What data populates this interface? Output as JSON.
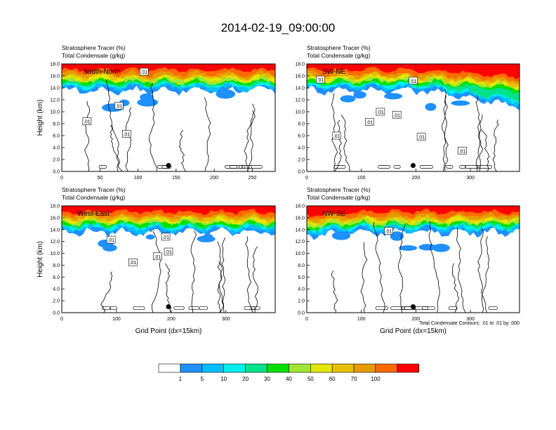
{
  "figure": {
    "title": "2014-02-19_09:00:00",
    "contour_note": "Total Condensate Contours: .01 to .01 by .000"
  },
  "colors": {
    "colorbar": [
      "#ffffff",
      "#1e90ff",
      "#00bfff",
      "#00eeee",
      "#00e38b",
      "#00e000",
      "#a0e632",
      "#e6e600",
      "#e6c000",
      "#e69b00",
      "#ff6a00",
      "#ff0000"
    ]
  },
  "colorbar": {
    "labels": [
      "1",
      "5",
      "10",
      "20",
      "30",
      "40",
      "50",
      "60",
      "70",
      "100"
    ]
  },
  "chart_data": [
    {
      "type": "heatmap",
      "panel": "top-left",
      "label": "South-North",
      "header_lines": [
        "Stratosphere Tracer   (%)",
        "Total Condensate   (g/kg)"
      ],
      "ylabel": "Height (km)",
      "xlabel": "",
      "xlim": [
        0,
        280
      ],
      "ylim": [
        0,
        18
      ],
      "xticks": [
        "0",
        "50",
        "100",
        "150",
        "200",
        "250"
      ],
      "xtick_values": [
        0,
        50,
        100,
        150,
        200,
        250
      ],
      "yticks": [
        "0.0",
        "2.0",
        "4.0",
        "6.0",
        "8.0",
        "10.0",
        "12.0",
        "14.0",
        "16.0",
        "18.0"
      ],
      "contour_labels": [
        {
          "text": ".01",
          "x": 108,
          "y": 16.7
        },
        {
          "text": ".01",
          "x": 75,
          "y": 11.0
        },
        {
          "text": ".01",
          "x": 33,
          "y": 8.4
        },
        {
          "text": ".01",
          "x": 85,
          "y": 6.3
        }
      ],
      "marker": {
        "x": 140,
        "y": 1.0
      }
    },
    {
      "type": "heatmap",
      "panel": "top-right",
      "label": "SW-NE",
      "header_lines": [
        "Stratosphere Tracer   (%)",
        "Total Condensate   (g/kg)"
      ],
      "ylabel": "",
      "xlabel": "",
      "xlim": [
        0,
        390
      ],
      "ylim": [
        0,
        18
      ],
      "xticks": [
        "0",
        "100",
        "200",
        "300"
      ],
      "xtick_values": [
        0,
        100,
        200,
        300
      ],
      "yticks": [
        "0.0",
        "2.0",
        "4.0",
        "6.0",
        "8.0",
        "10.0",
        "12.0",
        "14.0",
        "16.0",
        "18.0"
      ],
      "contour_labels": [
        {
          "text": ".01",
          "x": 25,
          "y": 15.4
        },
        {
          "text": ".01",
          "x": 195,
          "y": 15.2
        },
        {
          "text": ".01",
          "x": 135,
          "y": 10.0
        },
        {
          "text": ".01",
          "x": 165,
          "y": 9.5
        },
        {
          "text": ".01",
          "x": 115,
          "y": 8.3
        },
        {
          "text": ".01",
          "x": 55,
          "y": 6.0
        },
        {
          "text": ".01",
          "x": 210,
          "y": 5.8
        },
        {
          "text": ".01",
          "x": 285,
          "y": 3.5
        }
      ],
      "marker": {
        "x": 195,
        "y": 1.0
      }
    },
    {
      "type": "heatmap",
      "panel": "bottom-left",
      "label": "West-East",
      "header_lines": [
        "Stratosphere Tracer   (%)",
        "Total Condensate   (g/kg)"
      ],
      "ylabel": "Height (km)",
      "xlabel": "Grid Point (dx=15km)",
      "xlim": [
        0,
        390
      ],
      "ylim": [
        0,
        18
      ],
      "xticks": [
        "0",
        "100",
        "200",
        "300"
      ],
      "xtick_values": [
        0,
        100,
        200,
        300
      ],
      "yticks": [
        "0.0",
        "2.0",
        "4.0",
        "6.0",
        "8.0",
        "10.0",
        "12.0",
        "14.0",
        "16.0",
        "18.0"
      ],
      "contour_labels": [
        {
          "text": ".01",
          "x": 190,
          "y": 12.8
        },
        {
          "text": ".01",
          "x": 90,
          "y": 12.3
        },
        {
          "text": ".01",
          "x": 195,
          "y": 10.3
        },
        {
          "text": ".01",
          "x": 175,
          "y": 9.5
        },
        {
          "text": ".01",
          "x": 130,
          "y": 8.5
        }
      ],
      "marker": {
        "x": 195,
        "y": 1.0
      }
    },
    {
      "type": "heatmap",
      "panel": "bottom-right",
      "label": "NW-SE",
      "header_lines": [
        "Stratosphere Tracer   (%)",
        "Total Condensate   (g/kg)"
      ],
      "ylabel": "",
      "xlabel": "Grid Point (dx=15km)",
      "xlim": [
        0,
        390
      ],
      "ylim": [
        0,
        18
      ],
      "xticks": [
        "0",
        "100",
        "200",
        "300"
      ],
      "xtick_values": [
        0,
        100,
        200,
        300
      ],
      "yticks": [
        "0.0",
        "2.0",
        "4.0",
        "6.0",
        "8.0",
        "10.0",
        "12.0",
        "14.0",
        "16.0",
        "18.0"
      ],
      "contour_labels": [
        {
          "text": ".01",
          "x": 150,
          "y": 13.8
        }
      ],
      "marker": {
        "x": 195,
        "y": 1.0
      }
    }
  ]
}
